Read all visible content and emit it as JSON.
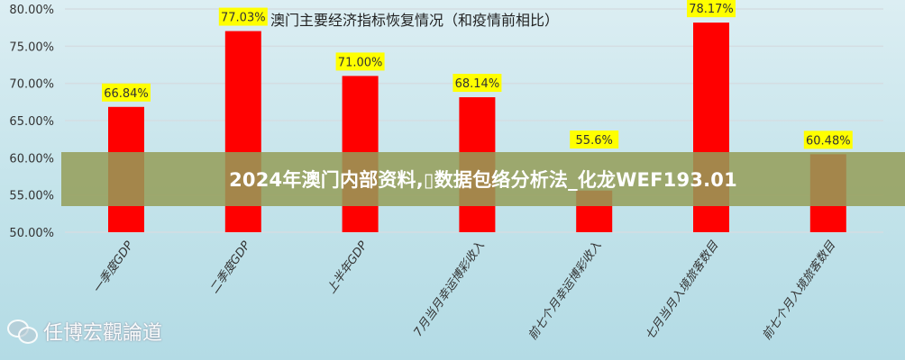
{
  "chart_data": {
    "type": "bar",
    "title": "澳门主要经济指标恢复情况（和疫情前相比）",
    "categories": [
      "一季度GDP",
      "二季度GDP",
      "上半年GDP",
      "7月当月幸运博彩收入",
      "前七个月幸运博彩收入",
      "七月当月入境旅客数目",
      "前七个月入境旅客数目"
    ],
    "values": [
      66.84,
      77.03,
      71.0,
      68.14,
      55.6,
      78.17,
      60.48
    ],
    "data_labels": [
      "66.84%",
      "77.03%",
      "71.00%",
      "68.14%",
      "55.6%",
      "78.17%",
      "60.48%"
    ],
    "ylim": [
      50,
      80
    ],
    "yticks": [
      "50.00%",
      "55.00%",
      "60.00%",
      "65.00%",
      "70.00%",
      "75.00%",
      "80.00%"
    ],
    "grid": true,
    "bar_color": "#ff0000",
    "label_bg": "#ffff00"
  },
  "banner": {
    "text": "2024年澳门内部资料,\u0000数据包络分析法_化龙WEF193.01"
  },
  "watermark": {
    "text": "任博宏觀論道",
    "icon": "wechat-icon"
  }
}
